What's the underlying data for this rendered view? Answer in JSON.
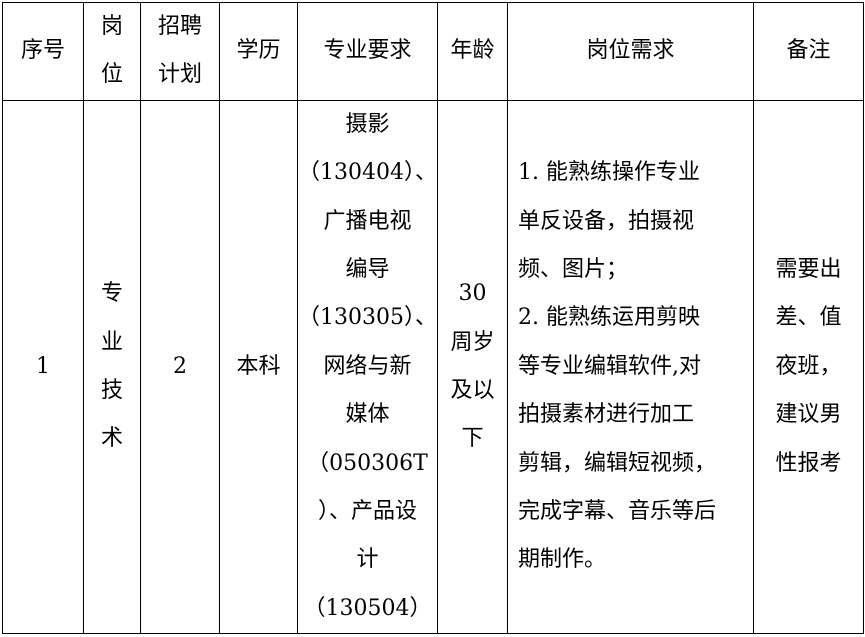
{
  "headers": {
    "seq": [
      "序号"
    ],
    "post": [
      "岗",
      "位"
    ],
    "plan": [
      "招聘",
      "计划"
    ],
    "edu": [
      "学历"
    ],
    "major": [
      "专业要求"
    ],
    "age": [
      "年龄"
    ],
    "req": [
      "岗位需求"
    ],
    "note": [
      "备注"
    ]
  },
  "row": {
    "seq": [
      "1"
    ],
    "post": [
      "专",
      "业",
      "技",
      "术"
    ],
    "plan": [
      "2"
    ],
    "edu": [
      "本科"
    ],
    "major": [
      "摄影",
      "（130404）、",
      "广播电视",
      "编导",
      "（130305）、",
      "网络与新",
      "媒体",
      "（050306T",
      "）、产品设",
      "计",
      "（130504）"
    ],
    "age": [
      "30",
      "周岁",
      "及以",
      "下"
    ],
    "req": [
      "1. 能熟练操作专业",
      "单反设备，拍摄视",
      "频、图片；",
      "2. 能熟练运用剪映",
      "等专业编辑软件,对",
      "拍摄素材进行加工",
      "剪辑，编辑短视频，",
      "完成字幕、音乐等后",
      "期制作。"
    ],
    "note": [
      "需要出",
      "差、值",
      "夜班，",
      "建议男",
      "性报考"
    ]
  }
}
